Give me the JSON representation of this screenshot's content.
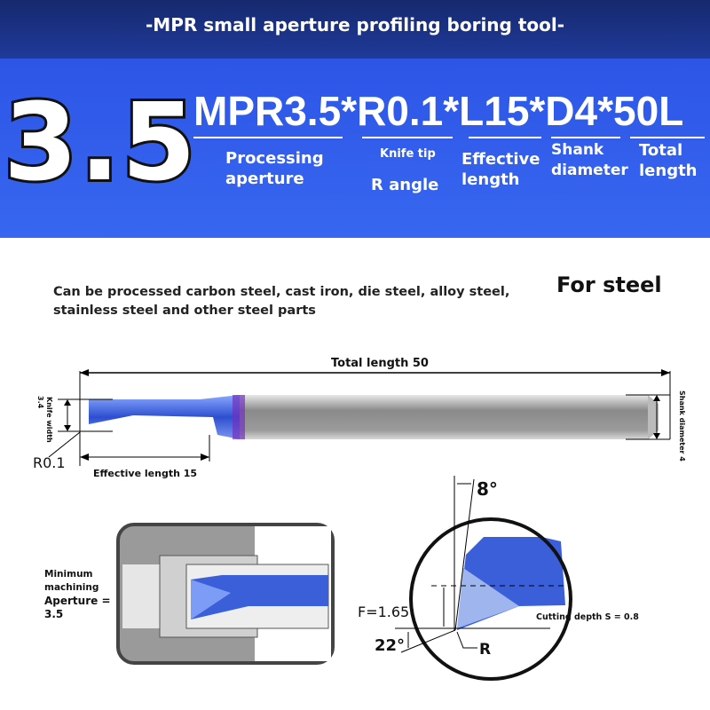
{
  "header": {
    "title": "-MPR small aperture profiling boring tool-"
  },
  "banner": {
    "size": "3.5",
    "model": "MPR3.5*R0.1*L15*D4*50L",
    "labels": {
      "aperture": "Processing aperture",
      "tip": "Knife tip",
      "r_angle": "R angle",
      "effective": "Effective length",
      "shank": "Shank diameter",
      "total": "Total length"
    }
  },
  "description": {
    "text_line1": "Can be processed carbon steel, cast iron, die steel, alloy steel,",
    "text_line2": "stainless steel and other steel parts",
    "material": "For steel"
  },
  "drawing": {
    "total_length": "Total length 50",
    "knife_width": "Knife width",
    "knife_width_value": "3.4",
    "radius": "R0.1",
    "effective_length": "Effective length 15",
    "shank_diameter": "Shank diameter 4"
  },
  "aperture_view": {
    "line1": "Minimum",
    "line2": "machining",
    "line3": "Aperture =",
    "line4": "3.5"
  },
  "detail": {
    "angle_top": "8°",
    "f": "F=1.65",
    "angle_bottom": "22°",
    "r": "R",
    "cutting_depth": "Cutting depth S = 0.8"
  },
  "colors": {
    "navy": "#1b3183",
    "blue": "#3161ee",
    "tool_blue": "#3b5fd8",
    "shank_gray": "#9a9a9a"
  }
}
